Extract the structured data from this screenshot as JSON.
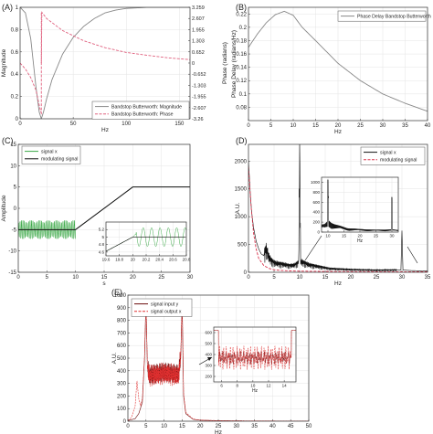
{
  "chart_data": [
    {
      "panel": "(A)",
      "type": "line",
      "xlabel": "Hz",
      "ylabel": "Magnitude",
      "ylabel_right": "Phase (radians)",
      "xlim": [
        0,
        160
      ],
      "ylim": [
        0,
        1
      ],
      "ylim_right": [
        -3.26,
        3.259
      ],
      "xticks": [
        "0",
        "50",
        "100",
        "150"
      ],
      "yticks": [
        "0",
        "0.2",
        "0.4",
        "0.6",
        "0.8",
        "1"
      ],
      "yticks_right": [
        "3.259",
        "2.607",
        "1.955",
        "1.303",
        "0.652",
        "0",
        "-0.652",
        "-1.303",
        "-1.955",
        "-2.607",
        "-3.26"
      ],
      "grid": true,
      "legend_position": "bottom-right",
      "series": [
        {
          "name": "Bandstop Butterworth: Magnitude",
          "color": "#888888",
          "axis": "left",
          "x": [
            0,
            5,
            10,
            15,
            18,
            20,
            22,
            25,
            30,
            40,
            50,
            60,
            70,
            80,
            90,
            100,
            120,
            140,
            160
          ],
          "values": [
            1.0,
            0.95,
            0.72,
            0.28,
            0.06,
            0.0,
            0.06,
            0.18,
            0.35,
            0.58,
            0.73,
            0.83,
            0.9,
            0.95,
            0.975,
            0.99,
            1.0,
            1.0,
            1.0
          ]
        },
        {
          "name": "Bandstop Butterworth: Phase",
          "color": "#e0607e",
          "dash": true,
          "axis": "right",
          "x": [
            0,
            5,
            10,
            15,
            19.9,
            20.1,
            25,
            40,
            60,
            80,
            100,
            120,
            140,
            160
          ],
          "values": [
            0,
            -0.35,
            -0.85,
            -1.6,
            -3.0,
            3.0,
            2.6,
            1.9,
            1.3,
            0.9,
            0.62,
            0.45,
            0.3,
            0.2
          ]
        }
      ]
    },
    {
      "panel": "(B)",
      "type": "line",
      "xlabel": "Hz",
      "ylabel": "Phase Delay (radians/Hz)",
      "xlim": [
        0,
        40
      ],
      "ylim": [
        0.06,
        0.23
      ],
      "xticks": [
        "0",
        "5",
        "10",
        "15",
        "20",
        "25",
        "30",
        "35",
        "40"
      ],
      "yticks": [
        "0.08",
        "0.1",
        "0.12",
        "0.14",
        "0.16",
        "0.18",
        "0.2",
        "0.22"
      ],
      "grid": true,
      "legend_position": "top-right",
      "series": [
        {
          "name": "Phase Delay Bandstop Butterworth",
          "color": "#888888",
          "x": [
            0,
            2,
            4,
            6,
            8,
            10,
            12,
            15,
            20,
            25,
            30,
            35,
            40
          ],
          "values": [
            0.17,
            0.19,
            0.207,
            0.219,
            0.224,
            0.218,
            0.2,
            0.18,
            0.146,
            0.12,
            0.1,
            0.086,
            0.074
          ]
        }
      ]
    },
    {
      "panel": "(C)",
      "type": "line",
      "xlabel": "s",
      "ylabel": "Amplitude",
      "xlim": [
        0,
        30
      ],
      "ylim": [
        -15,
        15
      ],
      "xticks": [
        "0",
        "5",
        "10",
        "15",
        "20",
        "25",
        "30"
      ],
      "yticks": [
        "-15",
        "-10",
        "-5",
        "0",
        "5",
        "10",
        "15"
      ],
      "grid": true,
      "legend_position": "top-left",
      "series": [
        {
          "name": "signal x",
          "color": "#39a845",
          "oscillating": true,
          "osc_amplitude": 2.2,
          "osc_cycles": 40,
          "x": [
            0,
            10,
            20,
            30
          ],
          "values": [
            -5,
            -5,
            5,
            5
          ]
        },
        {
          "name": "modulating signal",
          "color": "#111111",
          "x": [
            0,
            10,
            20,
            30
          ],
          "values": [
            -5,
            -5,
            5,
            5
          ]
        }
      ],
      "inset": {
        "xlim": [
          19.6,
          20.8
        ],
        "ylim": [
          4.5,
          5.4
        ],
        "xticks": [
          "19.6",
          "19.8",
          "20",
          "20.2",
          "20.4",
          "20.6",
          "20.8"
        ],
        "yticks": [
          "4.6",
          "4.8",
          "5",
          "5.2"
        ],
        "oscillation_start": 20.0
      }
    },
    {
      "panel": "(D)",
      "type": "line",
      "xlabel": "Hz",
      "ylabel": "A.U.",
      "xlim": [
        0,
        35
      ],
      "ylim": [
        0,
        2300
      ],
      "xticks": [
        "0",
        "5",
        "10",
        "15",
        "20",
        "25",
        "30",
        "35"
      ],
      "yticks": [
        "0",
        "500",
        "1000",
        "1500",
        "2000"
      ],
      "grid": true,
      "legend_position": "top-right",
      "series": [
        {
          "name": "signal x",
          "color": "#111111",
          "x": [
            0,
            0.3,
            0.6,
            1,
            1.5,
            2,
            2.5,
            3,
            3.5,
            4,
            4.5,
            5,
            6,
            7,
            8,
            9,
            9.8,
            10,
            10.2,
            11,
            12,
            14,
            16,
            20,
            25,
            29.8,
            30,
            30.2,
            32,
            35
          ],
          "values": [
            2000,
            1500,
            1100,
            800,
            560,
            420,
            330,
            300,
            380,
            250,
            190,
            160,
            140,
            130,
            110,
            120,
            160,
            2000,
            180,
            150,
            120,
            90,
            60,
            45,
            35,
            40,
            750,
            40,
            30,
            25
          ]
        },
        {
          "name": "modulating signal",
          "color": "#d9334c",
          "dash": true,
          "x": [
            0,
            0.5,
            1,
            1.5,
            2,
            3,
            4,
            5,
            6,
            8,
            10,
            15,
            20,
            25,
            30,
            35
          ],
          "values": [
            1900,
            1200,
            700,
            420,
            250,
            120,
            70,
            45,
            35,
            25,
            20,
            15,
            12,
            10,
            9,
            8
          ]
        }
      ],
      "inset": {
        "xlim": [
          8,
          32
        ],
        "ylim": [
          0,
          1100
        ],
        "xticks": [
          "10",
          "15",
          "20",
          "25",
          "30"
        ],
        "yticks": [
          "0",
          "200",
          "400",
          "600",
          "800",
          "1000"
        ],
        "xlabel": "Hz"
      }
    },
    {
      "panel": "(E)",
      "type": "line",
      "xlabel": "Hz",
      "ylabel": "A.U.",
      "xlim": [
        0,
        50
      ],
      "ylim": [
        0,
        1000
      ],
      "xticks": [
        "0",
        "5",
        "10",
        "15",
        "20",
        "25",
        "30",
        "35",
        "40",
        "45",
        "50"
      ],
      "yticks": [
        "0",
        "100",
        "200",
        "300",
        "400",
        "500",
        "600",
        "700",
        "800",
        "900",
        "1000"
      ],
      "grid": true,
      "legend_position": "top-left",
      "series": [
        {
          "name": "signal input y",
          "color": "#6b0d0d",
          "x": [
            0,
            2,
            3,
            4,
            4.6,
            5,
            5.4,
            6,
            8,
            10,
            12,
            14,
            14.6,
            15,
            15.4,
            16,
            18,
            20,
            25,
            30,
            50
          ],
          "values": [
            5,
            20,
            60,
            150,
            500,
            950,
            420,
            360,
            370,
            380,
            370,
            360,
            500,
            950,
            200,
            60,
            15,
            8,
            4,
            2,
            1
          ]
        },
        {
          "name": "signal output x",
          "color": "#e03030",
          "dash": true,
          "x": [
            0,
            1,
            2,
            2.5,
            3,
            3.5,
            4,
            4.6,
            5,
            5.4,
            6,
            8,
            10,
            12,
            14,
            14.6,
            15,
            15.4,
            16,
            18,
            20,
            25,
            30,
            50
          ],
          "values": [
            5,
            30,
            120,
            320,
            180,
            120,
            180,
            520,
            950,
            420,
            360,
            370,
            380,
            370,
            360,
            520,
            950,
            220,
            70,
            18,
            8,
            5,
            3,
            1
          ]
        }
      ],
      "inset": {
        "xlim": [
          5,
          15.5
        ],
        "ylim": [
          150,
          650
        ],
        "xticks": [
          "6",
          "8",
          "10",
          "12",
          "14"
        ],
        "yticks": [
          "200",
          "300",
          "400",
          "500",
          "600"
        ],
        "xlabel": "Hz"
      }
    }
  ]
}
